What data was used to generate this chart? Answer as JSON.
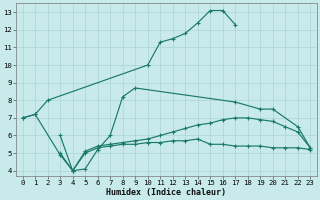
{
  "xlabel": "Humidex (Indice chaleur)",
  "bg_color": "#c8eaea",
  "grid_color": "#aed4d4",
  "line_color": "#1a7a6a",
  "xlim": [
    -0.5,
    23.5
  ],
  "ylim": [
    3.7,
    13.5
  ],
  "xticks": [
    0,
    1,
    2,
    3,
    4,
    5,
    6,
    7,
    8,
    9,
    10,
    11,
    12,
    13,
    14,
    15,
    16,
    17,
    18,
    19,
    20,
    21,
    22,
    23
  ],
  "yticks": [
    4,
    5,
    6,
    7,
    8,
    9,
    10,
    11,
    12,
    13
  ],
  "curve1_x": [
    0,
    1,
    2,
    10,
    11,
    12,
    13,
    14,
    15,
    16,
    17
  ],
  "curve1_y": [
    7.0,
    7.2,
    8.0,
    10.0,
    11.3,
    11.5,
    11.8,
    12.4,
    13.1,
    13.1,
    12.3
  ],
  "curve2_x": [
    0,
    1,
    3,
    4,
    5,
    6,
    7,
    8,
    9,
    17,
    19,
    20,
    22,
    23
  ],
  "curve2_y": [
    7.0,
    7.2,
    4.9,
    4.0,
    4.1,
    5.2,
    6.0,
    8.2,
    8.7,
    7.9,
    7.5,
    7.5,
    6.5,
    5.3
  ],
  "curve3_x": [
    3,
    4,
    5,
    6,
    7,
    8,
    9,
    10,
    11,
    12,
    13,
    14,
    15,
    16,
    17,
    18,
    19,
    20,
    21,
    22,
    23
  ],
  "curve3_y": [
    6.0,
    4.0,
    5.0,
    5.3,
    5.4,
    5.5,
    5.5,
    5.6,
    5.6,
    5.7,
    5.7,
    5.8,
    5.5,
    5.5,
    5.4,
    5.4,
    5.4,
    5.3,
    5.3,
    5.3,
    5.2
  ],
  "curve4_x": [
    3,
    4,
    5,
    6,
    7,
    8,
    9,
    10,
    11,
    12,
    13,
    14,
    15,
    16,
    17,
    18,
    19,
    20,
    21,
    22,
    23
  ],
  "curve4_y": [
    5.0,
    4.0,
    5.1,
    5.4,
    5.5,
    5.6,
    5.7,
    5.8,
    6.0,
    6.2,
    6.4,
    6.6,
    6.7,
    6.9,
    7.0,
    7.0,
    6.9,
    6.8,
    6.5,
    6.2,
    5.3
  ],
  "xlabel_fontsize": 6.0,
  "tick_fontsize": 5.2
}
